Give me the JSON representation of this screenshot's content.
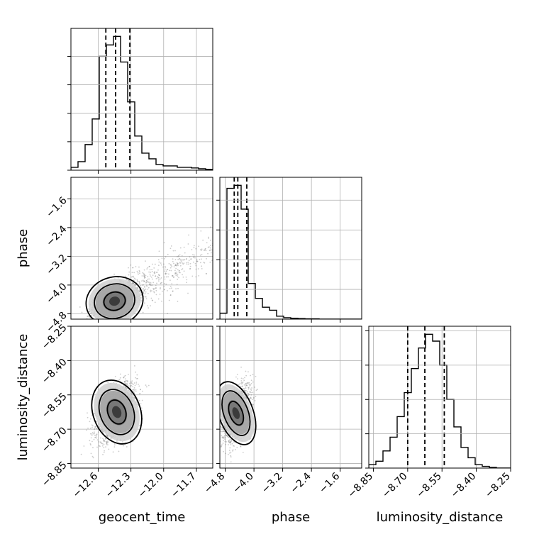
{
  "chart_data": {
    "type": "corner",
    "parameters": [
      "geocent_time",
      "phase",
      "luminosity_distance"
    ],
    "ranges": {
      "geocent_time": [
        -12.85,
        -11.55
      ],
      "phase": [
        -4.95,
        -1.0
      ],
      "luminosity_distance": [
        -8.87,
        -8.25
      ]
    },
    "ticks": {
      "geocent_time": [
        -12.6,
        -12.3,
        -12.0,
        -11.7
      ],
      "phase": [
        -4.8,
        -4.0,
        -3.2,
        -2.4,
        -1.6
      ],
      "luminosity_distance": [
        -8.85,
        -8.7,
        -8.55,
        -8.4,
        -8.25
      ]
    },
    "tick_labels": {
      "geocent_time": [
        "−12.6",
        "−12.3",
        "−12.0",
        "−11.7"
      ],
      "phase": [
        "−4.8",
        "−4.0",
        "−3.2",
        "−2.4",
        "−1.6"
      ],
      "luminosity_distance": [
        "−8.85",
        "−8.70",
        "−8.55",
        "−8.40",
        "−8.25"
      ]
    },
    "phase_row_tick_labels": [
      "−4.8",
      "−4.0",
      "−3.2",
      "−2.4",
      "−1.6"
    ],
    "quantiles": {
      "geocent_time": [
        -12.53,
        -12.44,
        -12.31
      ],
      "phase": [
        -4.55,
        -4.45,
        -4.2
      ],
      "luminosity_distance": [
        -8.7,
        -8.625,
        -8.54
      ]
    },
    "histograms": {
      "geocent_time": {
        "edges": [
          -12.85,
          -12.785,
          -12.72,
          -12.655,
          -12.59,
          -12.525,
          -12.46,
          -12.395,
          -12.33,
          -12.265,
          -12.2,
          -12.135,
          -12.07,
          -12.005,
          -11.94,
          -11.875,
          -11.81,
          -11.745,
          -11.68,
          -11.615,
          -11.55
        ],
        "counts": [
          1,
          3,
          9,
          18,
          40,
          44,
          47,
          38,
          24,
          12,
          6,
          4,
          2,
          1.5,
          1.5,
          1,
          1,
          0.8,
          0.5,
          0.3
        ]
      },
      "phase": {
        "edges": [
          -4.95,
          -4.7525,
          -4.555,
          -4.3575,
          -4.16,
          -3.9625,
          -3.765,
          -3.5675,
          -3.37,
          -3.1725,
          -2.975,
          -2.7775,
          -2.58,
          -2.3825,
          -2.185,
          -1.9875,
          -1.79,
          -1.5925,
          -1.395,
          -1.1975,
          -1.0
        ],
        "counts": [
          2,
          44,
          45,
          37,
          12,
          7,
          4,
          3,
          1,
          0.5,
          0.3,
          0.2,
          0.1,
          0.1,
          0,
          0,
          0,
          0,
          0,
          0
        ]
      },
      "luminosity_distance": {
        "edges": [
          -8.87,
          -8.839,
          -8.808,
          -8.777,
          -8.746,
          -8.715,
          -8.684,
          -8.653,
          -8.622,
          -8.591,
          -8.56,
          -8.529,
          -8.498,
          -8.467,
          -8.436,
          -8.405,
          -8.374,
          -8.343,
          -8.312,
          -8.281,
          -8.25
        ],
        "counts": [
          1,
          2,
          5,
          9,
          15,
          22,
          29,
          35,
          39,
          37,
          30,
          20,
          12,
          6,
          3,
          1,
          0.5,
          0.2,
          0,
          0
        ]
      }
    },
    "joint_2d": [
      {
        "x": "geocent_time",
        "y": "phase",
        "center": [
          -12.45,
          -4.45
        ],
        "spread": [
          0.11,
          0.28
        ],
        "corr": 0.6,
        "tail": true
      },
      {
        "x": "geocent_time",
        "y": "luminosity_distance",
        "center": [
          -12.43,
          -8.625
        ],
        "spread": [
          0.09,
          0.06
        ],
        "corr": 0.5,
        "tail": false
      },
      {
        "x": "phase",
        "y": "luminosity_distance",
        "center": [
          -4.5,
          -8.63
        ],
        "spread": [
          0.2,
          0.06
        ],
        "corr": 0.35,
        "tail": false
      }
    ],
    "grid": true,
    "colors": {
      "hist": "#000000",
      "points": "#6e6e6e",
      "grid": "#b0b0b0",
      "contour": "#000000"
    }
  }
}
